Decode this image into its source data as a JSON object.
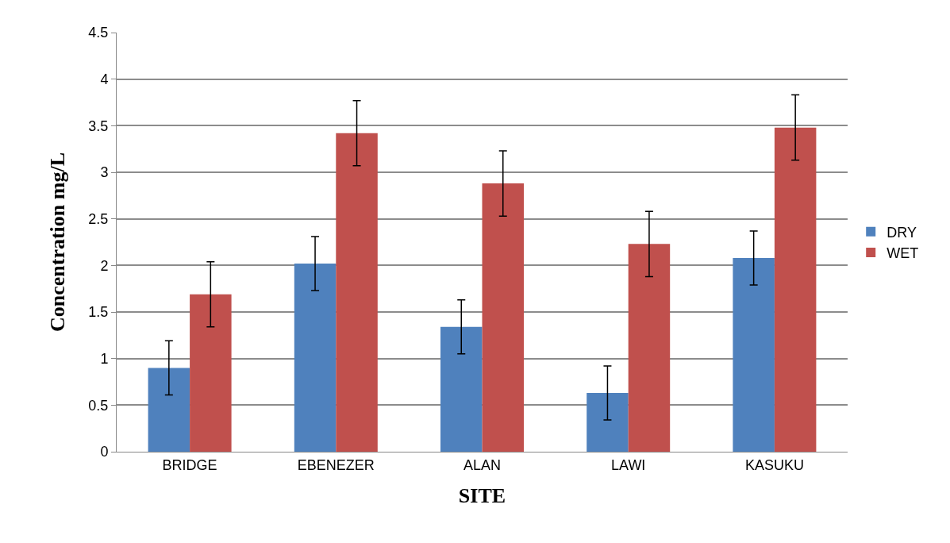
{
  "chart_data": {
    "type": "bar",
    "xlabel": "SITE",
    "ylabel": "Concentration mg/L",
    "categories": [
      "BRIDGE",
      "EBENEZER",
      "ALAN",
      "LAWI",
      "KASUKU"
    ],
    "series": [
      {
        "name": "DRY",
        "color": "#4f81bd",
        "values": [
          0.9,
          2.02,
          1.34,
          0.63,
          2.08
        ],
        "errors": [
          0.29,
          0.29,
          0.29,
          0.29,
          0.29
        ]
      },
      {
        "name": "WET",
        "color": "#c0504d",
        "values": [
          1.69,
          3.42,
          2.88,
          2.23,
          3.48
        ],
        "errors": [
          0.35,
          0.35,
          0.35,
          0.35,
          0.35
        ]
      }
    ],
    "ylim": [
      0,
      4.5
    ],
    "yticks": [
      0,
      0.5,
      1,
      1.5,
      2,
      2.5,
      3,
      3.5,
      4,
      4.5
    ],
    "grid": "y",
    "legend": "right"
  }
}
